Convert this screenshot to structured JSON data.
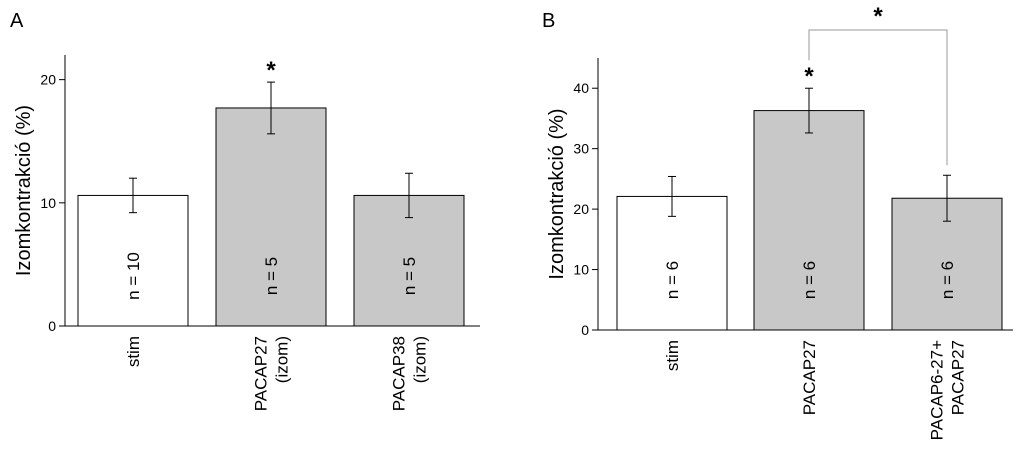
{
  "chart_data": [
    {
      "panel": "A",
      "type": "bar",
      "ylabel": "Izomkontrakció (%)",
      "ylim": [
        0,
        22
      ],
      "yticks": [
        0,
        10,
        20
      ],
      "categories": [
        [
          "stim"
        ],
        [
          "PACAP27",
          "(izom)"
        ],
        [
          "PACAP38",
          "(izom)"
        ]
      ],
      "values": [
        10.6,
        17.7,
        10.6
      ],
      "errors": [
        1.4,
        2.1,
        1.8
      ],
      "n_labels": [
        "n = 10",
        "n = 5",
        "n = 5"
      ],
      "fills": [
        "#ffffff",
        "#c8c8c8",
        "#c8c8c8"
      ],
      "stars": [
        "",
        "*",
        ""
      ],
      "bracket": null
    },
    {
      "panel": "B",
      "type": "bar",
      "ylabel": "Izomkontrakció (%)",
      "ylim": [
        0,
        45
      ],
      "yticks": [
        0,
        10,
        20,
        30,
        40
      ],
      "categories": [
        [
          "stim"
        ],
        [
          "PACAP27"
        ],
        [
          "PACAP6-27+",
          "PACAP27"
        ]
      ],
      "values": [
        22.1,
        36.3,
        21.8
      ],
      "errors": [
        3.3,
        3.7,
        3.8
      ],
      "n_labels": [
        "n = 6",
        "n = 6",
        "n = 6"
      ],
      "fills": [
        "#ffffff",
        "#c8c8c8",
        "#c8c8c8"
      ],
      "stars": [
        "",
        "*",
        ""
      ],
      "bracket": {
        "from": 1,
        "to": 2,
        "label": "*"
      }
    }
  ]
}
